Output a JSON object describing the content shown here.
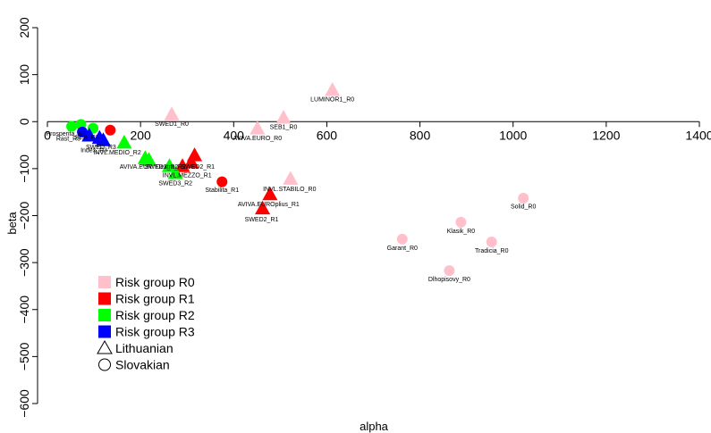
{
  "chart_data": {
    "type": "scatter",
    "xlabel": "alpha",
    "ylabel": "beta",
    "xlim": [
      0,
      1400
    ],
    "ylim": [
      -600,
      200
    ],
    "x_ticks": [
      "0",
      "200",
      "400",
      "600",
      "800",
      "1000",
      "1200",
      "1400"
    ],
    "y_ticks": [
      "200",
      "100",
      "0",
      "−100",
      "−200",
      "−300",
      "−400",
      "−500",
      "−600"
    ],
    "x_tick_values": [
      0,
      200,
      400,
      600,
      800,
      1000,
      1200,
      1400
    ],
    "y_tick_values": [
      200,
      100,
      0,
      -100,
      -200,
      -300,
      -400,
      -500,
      -600
    ],
    "reference_line": "horizontal line at beta = 0",
    "colors": {
      "R0": "#ffc0cb",
      "R1": "#ff0000",
      "R2": "#00ff00",
      "R3": "#0000ff"
    },
    "legend": {
      "placement": "bottom-left",
      "entries": [
        {
          "label": "Risk group R0",
          "symbol": "square",
          "color": "#ffc0cb"
        },
        {
          "label": "Risk group R1",
          "symbol": "square",
          "color": "#ff0000"
        },
        {
          "label": "Risk group R2",
          "symbol": "square",
          "color": "#00ff00"
        },
        {
          "label": "Risk group R3",
          "symbol": "square",
          "color": "#0000ff"
        },
        {
          "label": "Lithuanian",
          "symbol": "triangle-open",
          "color": "#000000"
        },
        {
          "label": "Slovakian",
          "symbol": "circle-open",
          "color": "#000000"
        }
      ]
    },
    "points": [
      {
        "label": "LUMINOR1_R0",
        "x": 612,
        "y": 67,
        "group": "R0",
        "shape": "triangle"
      },
      {
        "label": "SEB1_R0",
        "x": 507,
        "y": 8,
        "group": "R0",
        "shape": "triangle"
      },
      {
        "label": "SWED1_R0",
        "x": 267,
        "y": 15,
        "group": "R0",
        "shape": "triangle"
      },
      {
        "label": "AVIVA.EURO_R0",
        "x": 451,
        "y": -15,
        "group": "R0",
        "shape": "triangle"
      },
      {
        "label": "INVL.STABILO_R0",
        "x": 522,
        "y": -122,
        "group": "R0",
        "shape": "triangle"
      },
      {
        "label": "Solid_R0",
        "x": 1022,
        "y": -163,
        "group": "R0",
        "shape": "circle"
      },
      {
        "label": "Klasik_R0",
        "x": 888,
        "y": -214,
        "group": "R0",
        "shape": "circle"
      },
      {
        "label": "Garant_R0",
        "x": 762,
        "y": -250,
        "group": "R0",
        "shape": "circle"
      },
      {
        "label": "Tradicia_R0",
        "x": 954,
        "y": -256,
        "group": "R0",
        "shape": "circle"
      },
      {
        "label": "Dlhopisovy_R0",
        "x": 863,
        "y": -317,
        "group": "R0",
        "shape": "circle"
      },
      {
        "label": "SWED2_R1",
        "x": 309,
        "y": -87,
        "group": "R1",
        "shape": "triangle"
      },
      {
        "label": "SWED2_R1",
        "x": 316,
        "y": -72,
        "group": "R1",
        "shape": "triangle"
      },
      {
        "label": "AVIVA.EUROplius_R1",
        "x": 478,
        "y": -155,
        "group": "R1",
        "shape": "triangle"
      },
      {
        "label": "SWED2_R1",
        "x": 462,
        "y": -185,
        "group": "R1",
        "shape": "triangle"
      },
      {
        "label": "Stabilita_R1",
        "x": 375,
        "y": -128,
        "group": "R1",
        "shape": "circle"
      },
      {
        "label": "",
        "x": 135,
        "y": -18,
        "group": "R1",
        "shape": "circle"
      },
      {
        "label": "INVL.MEZZO_R1",
        "x": 290,
        "y": -95,
        "group": "R1",
        "shape": "triangle"
      },
      {
        "label": "AVIVA.EUR",
        "x": 210,
        "y": -78,
        "group": "R2",
        "shape": "triangle"
      },
      {
        "label": "SWED3_R2",
        "x": 218,
        "y": -82,
        "group": "R2",
        "shape": "triangle"
      },
      {
        "label": "Dextra_R2",
        "x": 262,
        "y": -95,
        "group": "R2",
        "shape": "triangle"
      },
      {
        "label": "INVL.MEDIO_R2",
        "x": 165,
        "y": -45,
        "group": "R2",
        "shape": "triangle"
      },
      {
        "label": "SWED3_R2",
        "x": 275,
        "y": -110,
        "group": "R2",
        "shape": "triangle"
      },
      {
        "label": "",
        "x": 52,
        "y": -10,
        "group": "R2",
        "shape": "circle"
      },
      {
        "label": "",
        "x": 72,
        "y": -6,
        "group": "R2",
        "shape": "circle"
      },
      {
        "label": "",
        "x": 98,
        "y": -14,
        "group": "R2",
        "shape": "circle"
      },
      {
        "label": "Index_R3",
        "x": 90,
        "y": -30,
        "group": "R3",
        "shape": "triangle"
      },
      {
        "label": "",
        "x": 112,
        "y": -35,
        "group": "R3",
        "shape": "triangle"
      },
      {
        "label": "",
        "x": 75,
        "y": -22,
        "group": "R3",
        "shape": "circle"
      },
      {
        "label": "",
        "x": 120,
        "y": -40,
        "group": "R3",
        "shape": "triangle"
      }
    ],
    "cluster_labels": [
      {
        "text": "Prosperita_R3",
        "x": 40,
        "y": -30
      },
      {
        "text": "Rast_R3",
        "x": 45,
        "y": -40
      },
      {
        "text": "SEB_R3",
        "x": 85,
        "y": -38
      },
      {
        "text": "Index_R3",
        "x": 100,
        "y": -65
      },
      {
        "text": "SWED_R3",
        "x": 115,
        "y": -58
      },
      {
        "text": "INVL.MEDIO_R2",
        "x": 150,
        "y": -70
      },
      {
        "text": "AVIVA.EUR",
        "x": 190,
        "y": -100
      },
      {
        "text": "SWED3_R2",
        "x": 245,
        "y": -100
      },
      {
        "text": "Dextra_R2",
        "x": 265,
        "y": -100
      },
      {
        "text": "SWED2_R1",
        "x": 323,
        "y": -100
      },
      {
        "text": "INVL.MEZZO_R1",
        "x": 300,
        "y": -118
      },
      {
        "text": "SWED3_R2",
        "x": 275,
        "y": -135
      },
      {
        "text": "INVL.STABILO_R0",
        "x": 520,
        "y": -148
      },
      {
        "text": "AVIVA.EUROplius_R1",
        "x": 475,
        "y": -180
      },
      {
        "text": "SWED2_R1",
        "x": 460,
        "y": -212
      },
      {
        "text": "Stabilita_R1",
        "x": 375,
        "y": -150
      },
      {
        "text": "Solid_R0",
        "x": 1022,
        "y": -185
      },
      {
        "text": "Klasik_R0",
        "x": 888,
        "y": -237
      },
      {
        "text": "Garant_R0",
        "x": 762,
        "y": -273
      },
      {
        "text": "Tradicia_R0",
        "x": 954,
        "y": -279
      },
      {
        "text": "Dlhopisovy_R0",
        "x": 863,
        "y": -340
      },
      {
        "text": "LUMINOR1_R0",
        "x": 612,
        "y": 43
      },
      {
        "text": "SEB1_R0",
        "x": 507,
        "y": -16
      },
      {
        "text": "SWED1_R0",
        "x": 267,
        "y": -9
      },
      {
        "text": "AVIVA.EURO_R0",
        "x": 451,
        "y": -39
      }
    ]
  }
}
